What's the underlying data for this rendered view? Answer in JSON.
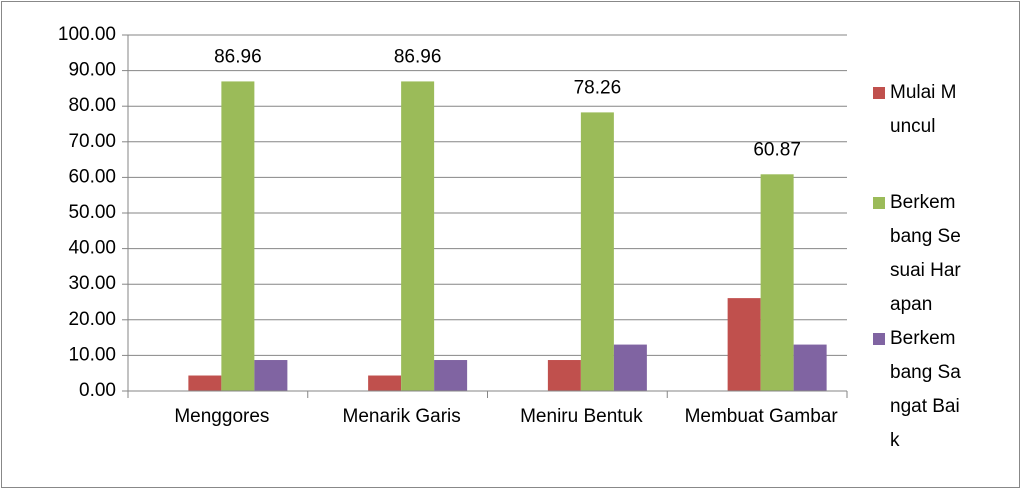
{
  "chart_data": {
    "type": "bar",
    "categories": [
      "Menggores",
      "Menarik Garis",
      "Meniru Bentuk",
      "Membuat Gambar"
    ],
    "series": [
      {
        "name": "Mulai Muncul",
        "color": "#c0504d",
        "values": [
          4.35,
          4.35,
          8.7,
          26.09
        ]
      },
      {
        "name": "Berkembang Sesuai Harapan",
        "color": "#9bbb59",
        "values": [
          86.96,
          86.96,
          78.26,
          60.87
        ],
        "data_labels": true
      },
      {
        "name": "Berkembang Sangat Baik",
        "color": "#8064a2",
        "values": [
          8.7,
          8.7,
          13.04,
          13.04
        ]
      }
    ],
    "ylim": [
      0,
      100
    ],
    "yticks": [
      {
        "value": 0,
        "label": "0.00"
      },
      {
        "value": 10,
        "label": "10.00"
      },
      {
        "value": 20,
        "label": "20.00"
      },
      {
        "value": 30,
        "label": "30.00"
      },
      {
        "value": 40,
        "label": "40.00"
      },
      {
        "value": 50,
        "label": "50.00"
      },
      {
        "value": 60,
        "label": "60.00"
      },
      {
        "value": 70,
        "label": "70.00"
      },
      {
        "value": 80,
        "label": "80.00"
      },
      {
        "value": 90,
        "label": "90.00"
      },
      {
        "value": 100,
        "label": "100.00"
      }
    ],
    "grid": true,
    "legend": "right"
  }
}
